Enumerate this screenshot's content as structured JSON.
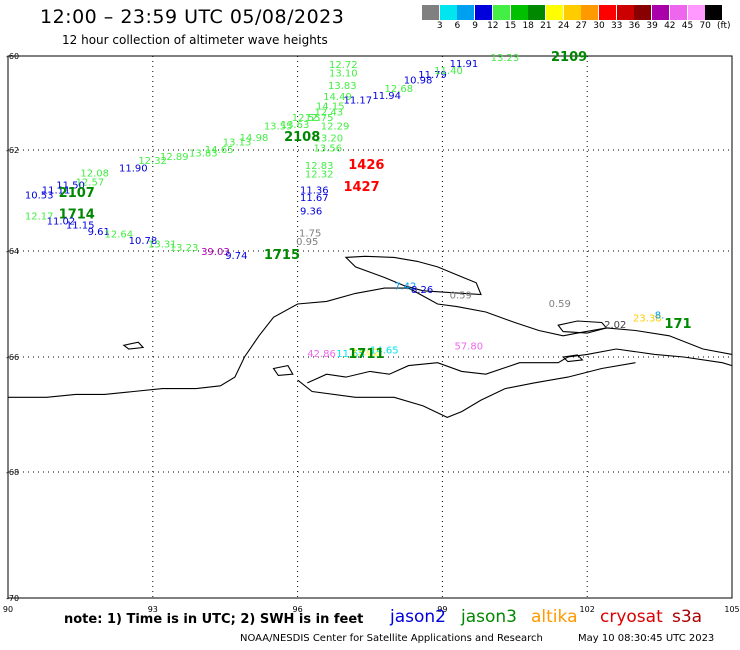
{
  "header": {
    "title": "12:00 – 23:59 UTC 05/08/2023",
    "subtitle": "12 hour collection of altimeter wave heights"
  },
  "colorbar": {
    "colors": [
      "#808080",
      "#00e5ee",
      "#00a0f0",
      "#0000dd",
      "#44ee44",
      "#00c000",
      "#008800",
      "#ffff00",
      "#ffcc00",
      "#ff9900",
      "#ff0000",
      "#cc0000",
      "#880000",
      "#aa00aa",
      "#ee66ee",
      "#ff99ff",
      "#000000"
    ],
    "labels": [
      "3",
      "6",
      "9",
      "12",
      "15",
      "18",
      "21",
      "24",
      "27",
      "30",
      "33",
      "36",
      "39",
      "42",
      "45",
      "70"
    ],
    "unit": "(ft)"
  },
  "axes": {
    "lat_labels": [
      {
        "text": "-60",
        "lat": -60
      },
      {
        "text": "-62",
        "lat": -62
      },
      {
        "text": "-64",
        "lat": -64
      },
      {
        "text": "-66",
        "lat": -66
      },
      {
        "text": "-68",
        "lat": -68
      },
      {
        "text": "-70",
        "lat": -70
      }
    ],
    "lon_labels": [
      {
        "text": "90",
        "lon": 90
      },
      {
        "text": "93",
        "lon": 93
      },
      {
        "text": "96",
        "lon": 96
      },
      {
        "text": "99",
        "lon": 99
      },
      {
        "text": "102",
        "lon": 102
      },
      {
        "text": "105",
        "lon": 105
      }
    ]
  },
  "labels": [
    {
      "t": "12.72",
      "lon": 96.65,
      "lat": -60.17,
      "c": "#44ee44"
    },
    {
      "t": "13.10",
      "lon": 96.65,
      "lat": -60.35,
      "c": "#44ee44"
    },
    {
      "t": "13.83",
      "lon": 96.63,
      "lat": -60.62,
      "c": "#44ee44"
    },
    {
      "t": "14.49",
      "lon": 96.53,
      "lat": -60.85,
      "c": "#44ee44"
    },
    {
      "t": "14.15",
      "lon": 96.38,
      "lat": -61.05,
      "c": "#44ee44"
    },
    {
      "t": "12.43",
      "lon": 96.35,
      "lat": -61.18,
      "c": "#44ee44"
    },
    {
      "t": "12.29",
      "lon": 96.48,
      "lat": -61.48,
      "c": "#44ee44"
    },
    {
      "t": "13.20",
      "lon": 96.35,
      "lat": -61.73,
      "c": "#44ee44"
    },
    {
      "t": "13.56",
      "lon": 96.33,
      "lat": -61.95,
      "c": "#44ee44"
    },
    {
      "t": "12.83",
      "lon": 96.15,
      "lat": -62.3,
      "c": "#44ee44"
    },
    {
      "t": "12.32",
      "lon": 96.15,
      "lat": -62.47,
      "c": "#44ee44"
    },
    {
      "t": "11.36",
      "lon": 96.05,
      "lat": -62.78,
      "c": "#0000dd"
    },
    {
      "t": "11.67",
      "lon": 96.05,
      "lat": -62.93,
      "c": "#0000dd"
    },
    {
      "t": "9.36",
      "lon": 96.05,
      "lat": -63.2,
      "c": "#0000dd"
    },
    {
      "t": "1.75",
      "lon": 96.03,
      "lat": -63.63,
      "c": "#808080"
    },
    {
      "t": "0.95",
      "lon": 95.97,
      "lat": -63.8,
      "c": "#808080"
    },
    {
      "t": "1426",
      "lon": 97.05,
      "lat": -62.3,
      "c": "#ff0000",
      "big": true
    },
    {
      "t": "1427",
      "lon": 96.95,
      "lat": -62.73,
      "c": "#ff0000",
      "big": true
    },
    {
      "t": "11.17",
      "lon": 96.95,
      "lat": -60.93,
      "c": "#0000dd"
    },
    {
      "t": "11.94",
      "lon": 97.55,
      "lat": -60.83,
      "c": "#0000dd"
    },
    {
      "t": "12.68",
      "lon": 97.8,
      "lat": -60.68,
      "c": "#44ee44"
    },
    {
      "t": "10.98",
      "lon": 98.2,
      "lat": -60.5,
      "c": "#0000dd"
    },
    {
      "t": "11.79",
      "lon": 98.5,
      "lat": -60.38,
      "c": "#0000dd"
    },
    {
      "t": "11.40",
      "lon": 98.83,
      "lat": -60.3,
      "c": "#44ee44"
    },
    {
      "t": "11.91",
      "lon": 99.15,
      "lat": -60.15,
      "c": "#0000dd"
    },
    {
      "t": "13.23",
      "lon": 100.0,
      "lat": -60.02,
      "c": "#44ee44"
    },
    {
      "t": "2109",
      "lon": 101.25,
      "lat": -60.02,
      "c": "#008800",
      "big": true
    },
    {
      "t": "12.55",
      "lon": 95.88,
      "lat": -61.3,
      "c": "#44ee44"
    },
    {
      "t": "12.75",
      "lon": 96.15,
      "lat": -61.3,
      "c": "#44ee44"
    },
    {
      "t": "13.63",
      "lon": 95.65,
      "lat": -61.45,
      "c": "#44ee44"
    },
    {
      "t": "13.55",
      "lon": 95.3,
      "lat": -61.48,
      "c": "#44ee44"
    },
    {
      "t": "2108",
      "lon": 95.72,
      "lat": -61.72,
      "c": "#008800",
      "big": true
    },
    {
      "t": "14.98",
      "lon": 94.8,
      "lat": -61.72,
      "c": "#44ee44"
    },
    {
      "t": "13.13",
      "lon": 94.45,
      "lat": -61.82,
      "c": "#44ee44"
    },
    {
      "t": "14.65",
      "lon": 94.08,
      "lat": -61.98,
      "c": "#44ee44"
    },
    {
      "t": "13.83",
      "lon": 93.75,
      "lat": -62.05,
      "c": "#44ee44"
    },
    {
      "t": "12.89",
      "lon": 93.15,
      "lat": -62.12,
      "c": "#44ee44"
    },
    {
      "t": "12.32",
      "lon": 92.7,
      "lat": -62.2,
      "c": "#44ee44"
    },
    {
      "t": "11.90",
      "lon": 92.3,
      "lat": -62.35,
      "c": "#0000dd"
    },
    {
      "t": "12.08",
      "lon": 91.5,
      "lat": -62.45,
      "c": "#44ee44"
    },
    {
      "t": "12.57",
      "lon": 91.4,
      "lat": -62.62,
      "c": "#44ee44"
    },
    {
      "t": "11.50",
      "lon": 91.0,
      "lat": -62.68,
      "c": "#0000dd"
    },
    {
      "t": "11.11",
      "lon": 90.7,
      "lat": -62.78,
      "c": "#0000dd"
    },
    {
      "t": "10.53",
      "lon": 90.35,
      "lat": -62.88,
      "c": "#0000dd"
    },
    {
      "t": "2107",
      "lon": 91.05,
      "lat": -62.85,
      "c": "#008800",
      "big": true
    },
    {
      "t": "12.17",
      "lon": 90.35,
      "lat": -63.3,
      "c": "#44ee44"
    },
    {
      "t": "1714",
      "lon": 91.05,
      "lat": -63.28,
      "c": "#008800",
      "big": true
    },
    {
      "t": "11.02",
      "lon": 90.8,
      "lat": -63.4,
      "c": "#0000dd"
    },
    {
      "t": "11.15",
      "lon": 91.2,
      "lat": -63.48,
      "c": "#0000dd"
    },
    {
      "t": "9.61",
      "lon": 91.65,
      "lat": -63.6,
      "c": "#0000dd"
    },
    {
      "t": "12.64",
      "lon": 92.0,
      "lat": -63.65,
      "c": "#44ee44"
    },
    {
      "t": "10.78",
      "lon": 92.5,
      "lat": -63.78,
      "c": "#0000dd"
    },
    {
      "t": "13.31",
      "lon": 92.9,
      "lat": -63.85,
      "c": "#44ee44"
    },
    {
      "t": "13.23",
      "lon": 93.35,
      "lat": -63.92,
      "c": "#44ee44"
    },
    {
      "t": "39.03",
      "lon": 94.0,
      "lat": -64.0,
      "c": "#aa00aa"
    },
    {
      "t": "9.74",
      "lon": 94.5,
      "lat": -64.08,
      "c": "#0000dd"
    },
    {
      "t": "1715",
      "lon": 95.3,
      "lat": -64.08,
      "c": "#008800",
      "big": true
    },
    {
      "t": "7.42",
      "lon": 98.0,
      "lat": -64.65,
      "c": "#00a0f0"
    },
    {
      "t": "8.26",
      "lon": 98.35,
      "lat": -64.72,
      "c": "#0000dd"
    },
    {
      "t": "0.59",
      "lon": 99.15,
      "lat": -64.82,
      "c": "#808080"
    },
    {
      "t": "0.59",
      "lon": 101.2,
      "lat": -64.98,
      "c": "#808080"
    },
    {
      "t": "57.80",
      "lon": 99.25,
      "lat": -65.78,
      "c": "#ee66ee"
    },
    {
      "t": "42.86",
      "lon": 96.2,
      "lat": -65.92,
      "c": "#ee66ee"
    },
    {
      "t": "11.55",
      "lon": 96.8,
      "lat": -65.92,
      "c": "#00e5ee"
    },
    {
      "t": "23.02",
      "lon": 97.1,
      "lat": -65.9,
      "c": "#ffff00"
    },
    {
      "t": "14.65",
      "lon": 97.5,
      "lat": -65.86,
      "c": "#00e5ee"
    },
    {
      "t": "1711",
      "lon": 97.05,
      "lat": -65.94,
      "c": "#008800",
      "big": true
    },
    {
      "t": "2.02",
      "lon": 102.35,
      "lat": -65.38,
      "c": "#404040"
    },
    {
      "t": "23.38",
      "lon": 102.95,
      "lat": -65.25,
      "c": "#ffcc00"
    },
    {
      "t": "8.",
      "lon": 103.4,
      "lat": -65.2,
      "c": "#00a0f0"
    },
    {
      "t": "171",
      "lon": 103.6,
      "lat": -65.38,
      "c": "#008800",
      "big": true
    }
  ],
  "footer": {
    "note": "note: 1) Time is in UTC; 2) SWH is in feet",
    "satellites": [
      {
        "name": "jason2",
        "color": "#0000dd"
      },
      {
        "name": "jason3",
        "color": "#008800"
      },
      {
        "name": "altika",
        "color": "#ff9900"
      },
      {
        "name": "cryosat",
        "color": "#dd0000"
      },
      {
        "name": "s3a",
        "color": "#aa0000"
      }
    ],
    "credit": "NOAA/NESDIS Center for Satellite Applications and Research",
    "generated": "May 10 08:30:45 UTC 2023"
  }
}
